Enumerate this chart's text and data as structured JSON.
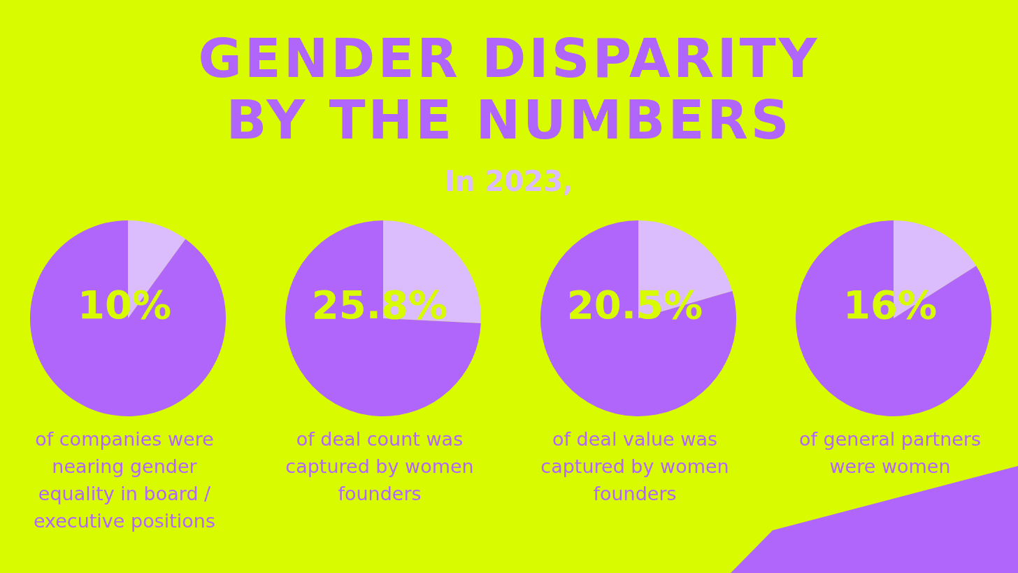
{
  "chart_data": [
    {
      "type": "other",
      "title": "GENDER DISPARITY\nBY THE NUMBERS",
      "subtitle": "In 2023,"
    },
    {
      "type": "pie",
      "categories": [
        null,
        null
      ],
      "values": [
        10,
        90
      ],
      "colors": [
        "#dbbcfc",
        "#b066fb"
      ],
      "value_labels": [
        "10%",
        null
      ],
      "annotations": [
        "of companies were nearing gender equality in board / executive positions"
      ]
    },
    {
      "type": "pie",
      "categories": [
        null,
        null
      ],
      "values": [
        25.8,
        74.2
      ],
      "colors": [
        "#dbbcfc",
        "#b066fb"
      ],
      "value_labels": [
        "25.8%",
        null
      ],
      "annotations": [
        "of deal count was captured by women founders"
      ]
    },
    {
      "type": "pie",
      "categories": [
        null,
        null
      ],
      "values": [
        20.5,
        79.5
      ],
      "colors": [
        "#dbbcfc",
        "#b066fb"
      ],
      "value_labels": [
        "20.5%",
        null
      ],
      "annotations": [
        "of deal value was captured by women founders"
      ]
    },
    {
      "type": "pie",
      "categories": [
        null,
        null
      ],
      "values": [
        16,
        84
      ],
      "colors": [
        "#dbbcfc",
        "#b066fb"
      ],
      "value_labels": [
        "16%",
        null
      ],
      "annotations": [
        "of general partners were women"
      ]
    }
  ]
}
